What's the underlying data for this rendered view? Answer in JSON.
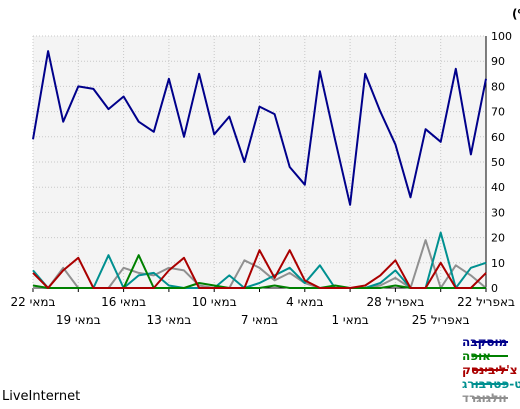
{
  "chart_data": {
    "type": "line",
    "ylabel": "חלק (%)",
    "ylim": [
      0,
      100
    ],
    "ytick_step": 10,
    "grid": true,
    "legend_position": "bottom-right",
    "watermark": "LiveInternet",
    "x_tick_labels_row1": [
      {
        "pos": 0,
        "label": "22 במאי"
      },
      {
        "pos": 6,
        "label": "16 במאי"
      },
      {
        "pos": 12,
        "label": "10 במאי"
      },
      {
        "pos": 18,
        "label": "4 במאי"
      },
      {
        "pos": 24,
        "label": "28 באפריל"
      },
      {
        "pos": 30,
        "label": "22 באפריל"
      }
    ],
    "x_tick_labels_row2": [
      {
        "pos": 3,
        "label": "19 במאי"
      },
      {
        "pos": 9,
        "label": "13 במאי"
      },
      {
        "pos": 15,
        "label": "7 במאי"
      },
      {
        "pos": 21,
        "label": "1 במאי"
      },
      {
        "pos": 27,
        "label": "25 באפריל"
      }
    ],
    "series": [
      {
        "name": "מוסקבה",
        "color": "#00008b",
        "values": [
          59,
          94,
          66,
          80,
          79,
          71,
          76,
          66,
          62,
          83,
          60,
          85,
          61,
          68,
          50,
          72,
          69,
          48,
          41,
          86,
          59,
          33,
          85,
          70,
          57,
          36,
          63,
          58,
          87,
          53,
          83
        ]
      },
      {
        "name": "אופה",
        "color": "#008000",
        "values": [
          1,
          0,
          0,
          0,
          0,
          0,
          0,
          13,
          0,
          0,
          0,
          2,
          1,
          0,
          0,
          0,
          1,
          0,
          0,
          0,
          1,
          0,
          0,
          0,
          1,
          0,
          0,
          0,
          0,
          0,
          0
        ]
      },
      {
        "name": "צ'ליבינסק",
        "color": "#aa0000",
        "values": [
          6,
          0,
          7,
          12,
          0,
          0,
          0,
          0,
          0,
          7,
          12,
          0,
          0,
          0,
          0,
          15,
          4,
          15,
          3,
          0,
          0,
          0,
          1,
          5,
          11,
          0,
          0,
          10,
          0,
          0,
          6
        ]
      },
      {
        "name": "סנקט-פטרבורג",
        "color": "#009090",
        "values": [
          7,
          0,
          0,
          0,
          0,
          13,
          0,
          5,
          6,
          1,
          0,
          0,
          0,
          5,
          0,
          2,
          5,
          8,
          2,
          9,
          0,
          0,
          0,
          2,
          7,
          0,
          0,
          22,
          0,
          8,
          10
        ]
      },
      {
        "name": "וולגוגרד",
        "color": "#909090",
        "values": [
          0,
          0,
          8,
          0,
          0,
          0,
          8,
          6,
          5,
          8,
          7,
          1,
          0,
          0,
          11,
          8,
          3,
          6,
          2,
          0,
          0,
          0,
          0,
          1,
          4,
          0,
          19,
          0,
          9,
          5,
          0
        ]
      }
    ]
  }
}
